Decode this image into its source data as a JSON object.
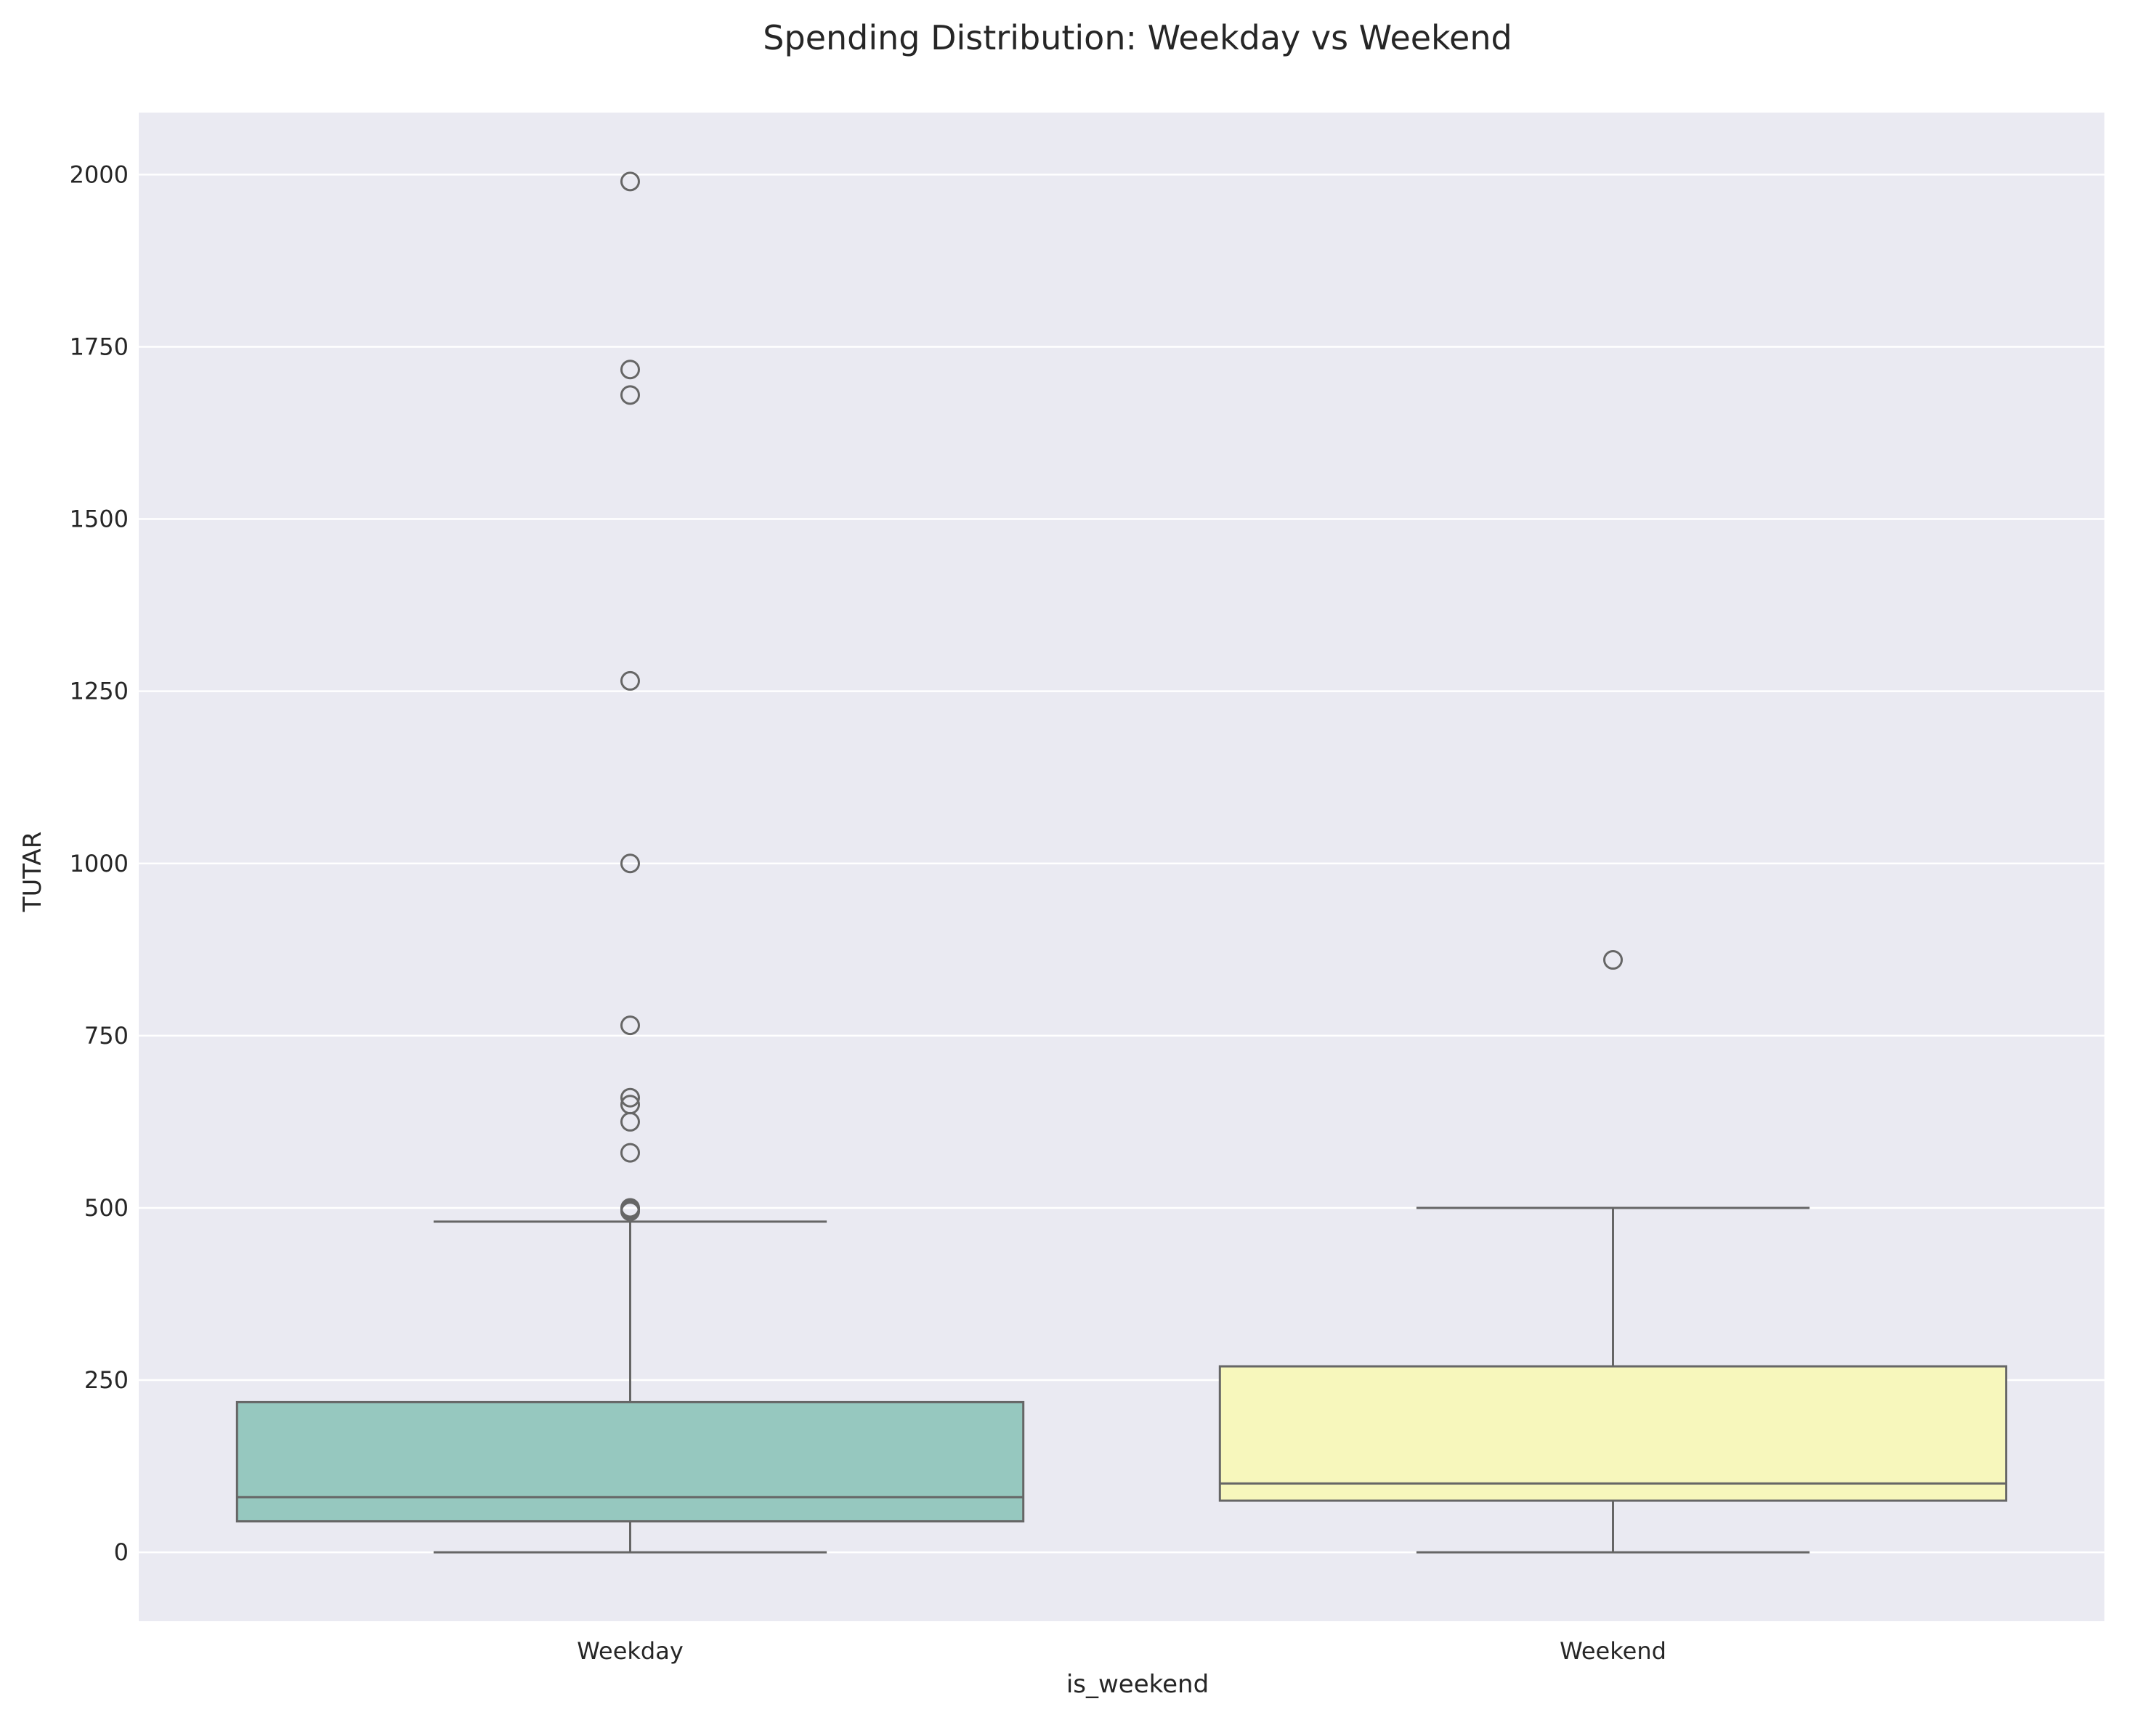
{
  "chart_data": {
    "type": "box",
    "title": "Spending Distribution: Weekday vs Weekend",
    "xlabel": "is_weekend",
    "ylabel": "TUTAR",
    "ylim": [
      -100,
      2090
    ],
    "yticks": [
      0,
      250,
      500,
      750,
      1000,
      1250,
      1500,
      1750,
      2000
    ],
    "grid": true,
    "legend": "none",
    "categories": [
      "Weekday",
      "Weekend"
    ],
    "series": [
      {
        "category": "Weekday",
        "color": "#96c8bf",
        "whisker_low": 0,
        "q1": 45,
        "median": 80,
        "q3": 218,
        "whisker_high": 480,
        "outliers": [
          1990,
          1717,
          1680,
          1265,
          1000,
          765,
          660,
          650,
          625,
          580,
          500,
          498,
          495
        ]
      },
      {
        "category": "Weekend",
        "color": "#f7f7bc",
        "whisker_low": 0,
        "q1": 75,
        "median": 100,
        "q3": 270,
        "whisker_high": 500,
        "outliers": [
          860
        ]
      }
    ],
    "colors": {
      "plot_background": "#eaeaf2",
      "gridline": "#ffffff",
      "box_edge": "#666666"
    }
  }
}
